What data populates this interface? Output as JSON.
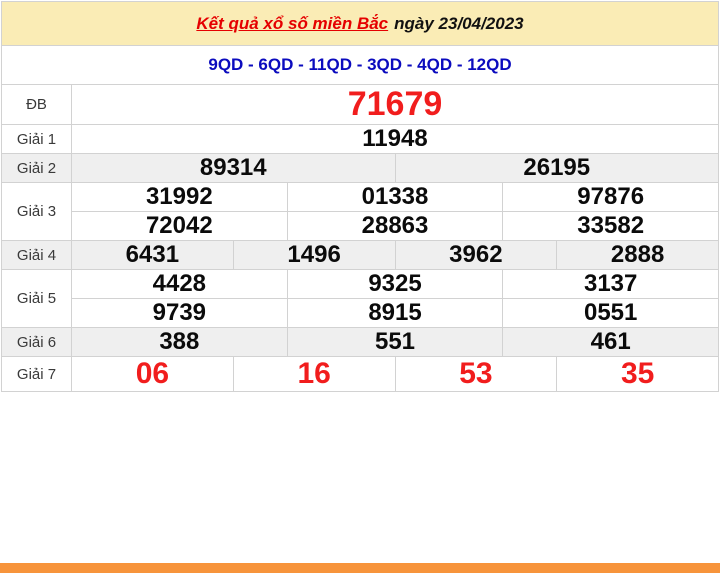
{
  "header": {
    "title": "Kết quả xổ số miền Bắc",
    "date": "ngày 23/04/2023"
  },
  "subheader": {
    "codes": "9QD - 6QD - 11QD - 3QD - 4QD - 12QD"
  },
  "results": {
    "rows": [
      {
        "key": "db",
        "label": "ĐB",
        "shade": false,
        "lines": [
          [
            "71679"
          ]
        ]
      },
      {
        "key": "g1",
        "label": "Giải 1",
        "shade": false,
        "lines": [
          [
            "11948"
          ]
        ]
      },
      {
        "key": "g2",
        "label": "Giải 2",
        "shade": true,
        "lines": [
          [
            "89314",
            "26195"
          ]
        ]
      },
      {
        "key": "g3",
        "label": "Giải 3",
        "shade": false,
        "lines": [
          [
            "31992",
            "01338",
            "97876"
          ],
          [
            "72042",
            "28863",
            "33582"
          ]
        ]
      },
      {
        "key": "g4",
        "label": "Giải 4",
        "shade": true,
        "lines": [
          [
            "6431",
            "1496",
            "3962",
            "2888"
          ]
        ]
      },
      {
        "key": "g5",
        "label": "Giải 5",
        "shade": false,
        "lines": [
          [
            "4428",
            "9325",
            "3137"
          ],
          [
            "9739",
            "8915",
            "0551"
          ]
        ]
      },
      {
        "key": "g6",
        "label": "Giải 6",
        "shade": true,
        "lines": [
          [
            "388",
            "551",
            "461"
          ]
        ]
      },
      {
        "key": "g7",
        "label": "Giải 7",
        "shade": false,
        "lines": [
          [
            "06",
            "16",
            "53",
            "35"
          ]
        ]
      }
    ]
  },
  "colors": {
    "accent-red": "#e50000",
    "number-red": "#f11d1d",
    "header-bg": "#faecb5",
    "codes-blue": "#0b0bbe",
    "shade-bg": "#efefef",
    "orange-bar": "#f7943b",
    "border": "#d2d2d2"
  }
}
